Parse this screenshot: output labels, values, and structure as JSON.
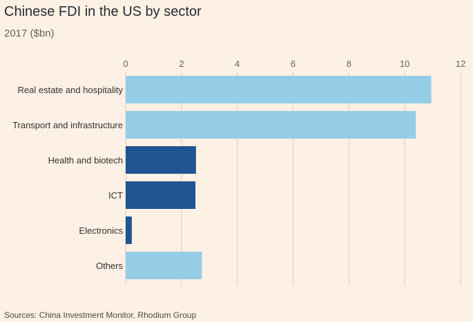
{
  "title": "Chinese FDI in the US by sector",
  "subtitle": "2017 ($bn)",
  "source": "Sources: China Investment Monitor, Rhodium Group",
  "colors": {
    "background": "#fdf1e5",
    "light_bar": "#96cde6",
    "dark_bar": "#1f5592",
    "grid": "#d9cdbf"
  },
  "chart_data": {
    "type": "bar",
    "orientation": "horizontal",
    "categories": [
      "Real estate and hospitality",
      "Transport and infrastructure",
      "Health and biotech",
      "ICT",
      "Electronics",
      "Others"
    ],
    "values": [
      10.95,
      10.4,
      2.52,
      2.5,
      0.22,
      2.73
    ],
    "bar_colors": [
      "light",
      "light",
      "dark",
      "dark",
      "dark",
      "light"
    ],
    "xlim": [
      0,
      12
    ],
    "xticks": [
      "0",
      "2",
      "4",
      "6",
      "8",
      "10",
      "12"
    ],
    "x_axis_position": "top",
    "grid": true,
    "xlabel": "",
    "ylabel": ""
  }
}
